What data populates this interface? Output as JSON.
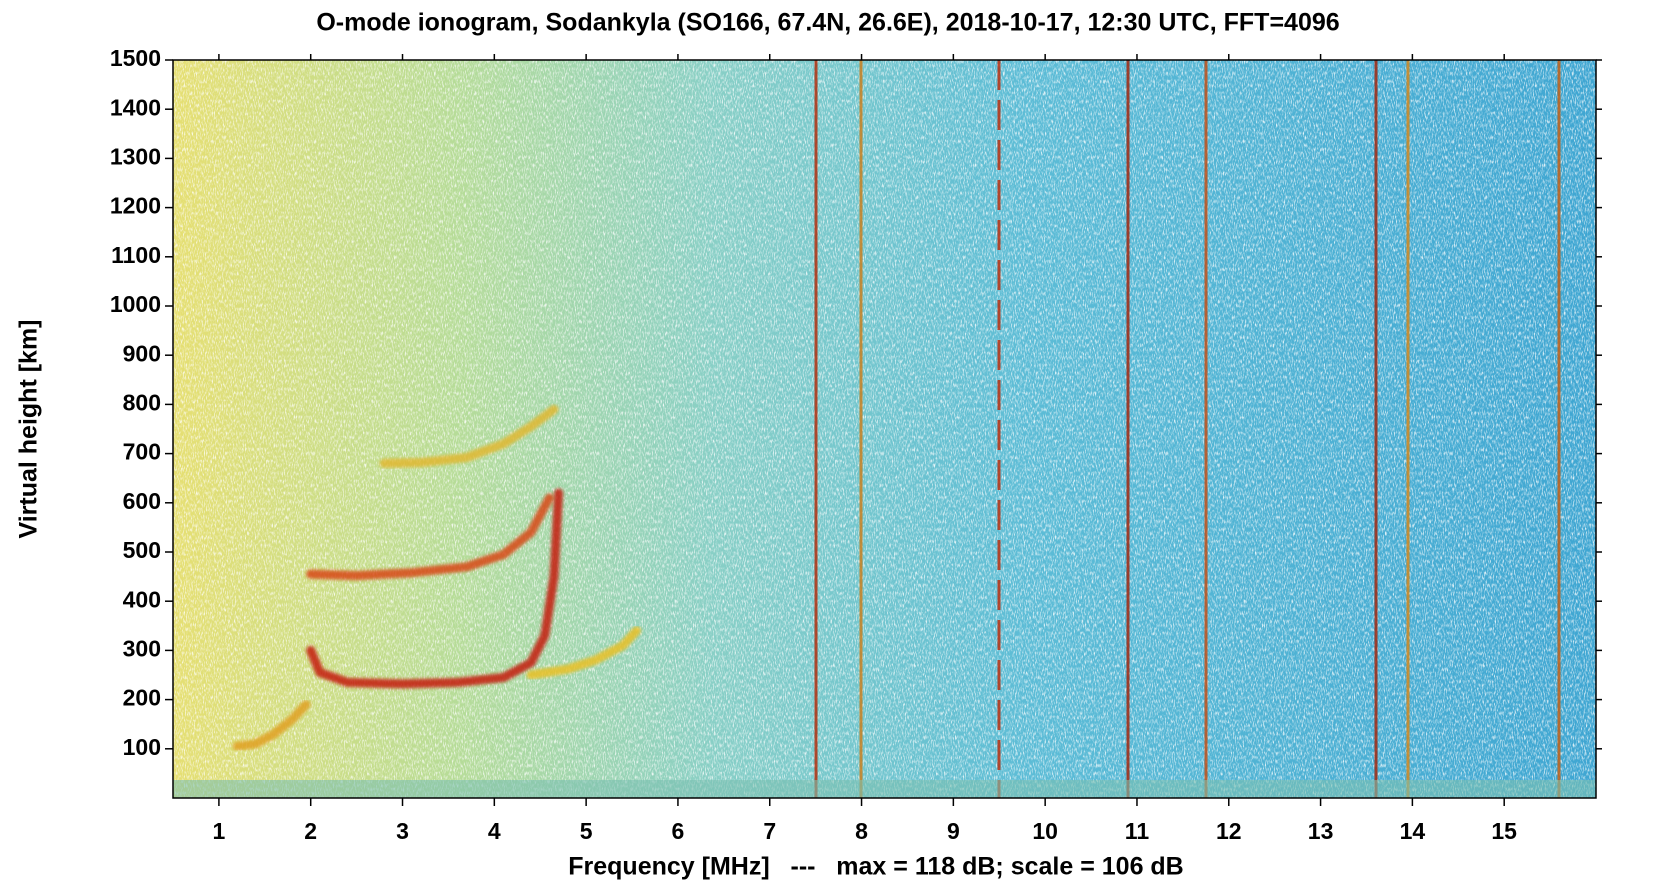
{
  "chart_data": {
    "type": "ionogram",
    "title": "O-mode ionogram, Sodankyla (SO166, 67.4N, 26.6E), 2018-10-17, 12:30 UTC, FFT=4096",
    "x_label": "Frequency [MHz]   ---   max = 118 dB; scale = 106 dB",
    "y_label": "Virtual height [km]",
    "xlim": [
      0.5,
      16
    ],
    "ylim": [
      0,
      1500
    ],
    "xticks": [
      1,
      2,
      3,
      4,
      5,
      6,
      7,
      8,
      9,
      10,
      11,
      12,
      13,
      14,
      15
    ],
    "yticks": [
      100,
      200,
      300,
      400,
      500,
      600,
      700,
      800,
      900,
      1000,
      1100,
      1200,
      1300,
      1400,
      1500
    ],
    "series": [
      {
        "color": "#e0a020",
        "x": [
          1.2,
          1.4,
          1.6,
          1.8,
          1.95
        ],
        "values": [
          105,
          110,
          130,
          160,
          190
        ]
      },
      {
        "color": "#c41e0c",
        "x": [
          2.0,
          2.1,
          2.4,
          3.0,
          3.6,
          4.1,
          4.4,
          4.55,
          4.65,
          4.7
        ],
        "values": [
          300,
          255,
          235,
          232,
          235,
          245,
          275,
          330,
          450,
          620
        ]
      },
      {
        "color": "#e8c028",
        "x": [
          4.4,
          4.8,
          5.1,
          5.4,
          5.55
        ],
        "values": [
          250,
          262,
          280,
          310,
          340
        ]
      },
      {
        "color": "#d84a18",
        "x": [
          2.0,
          2.5,
          3.1,
          3.7,
          4.1,
          4.4,
          4.6
        ],
        "values": [
          455,
          452,
          458,
          470,
          495,
          540,
          610
        ]
      },
      {
        "color": "#e0b830",
        "x": [
          2.8,
          3.2,
          3.7,
          4.1,
          4.4,
          4.65
        ],
        "values": [
          680,
          682,
          692,
          720,
          755,
          790
        ]
      }
    ]
  }
}
